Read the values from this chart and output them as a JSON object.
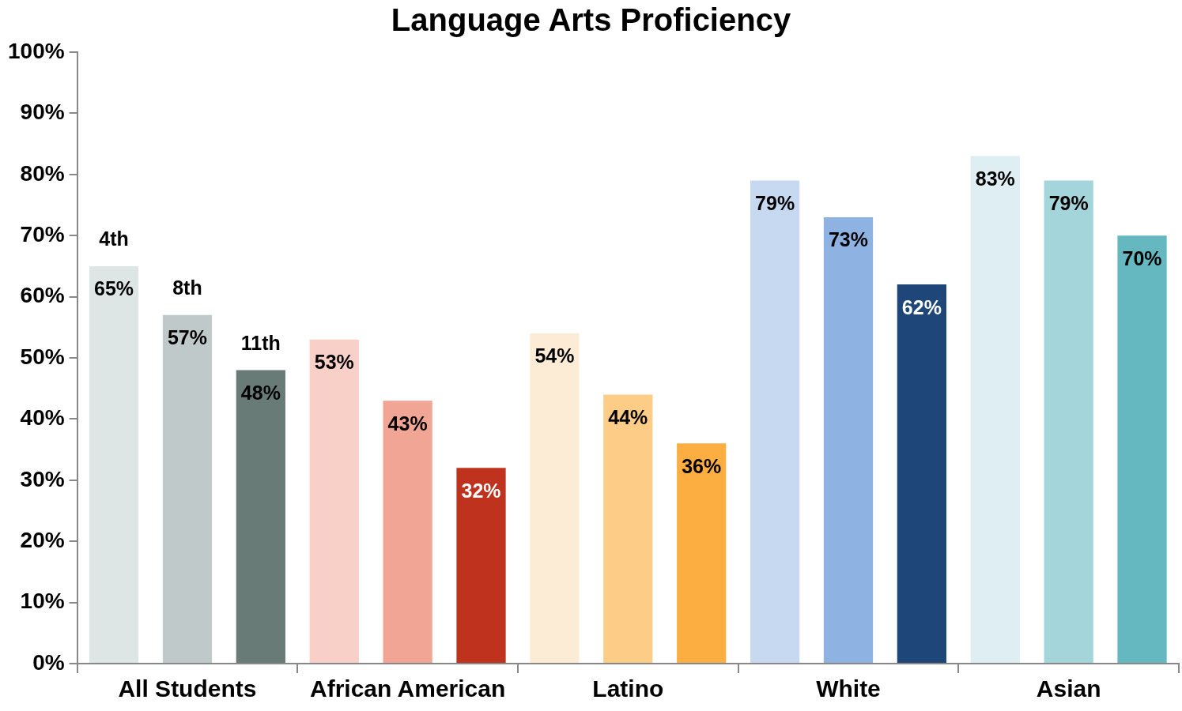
{
  "chart_data": {
    "type": "bar",
    "title": "Language Arts Proficiency",
    "categories": [
      "All Students",
      "African American",
      "Latino",
      "White",
      "Asian"
    ],
    "series": [
      {
        "name": "4th",
        "colors": [
          "#dde5e5",
          "#f8d0c8",
          "#fdecd5",
          "#c6d9f0",
          "#deeef3"
        ],
        "values": [
          65,
          53,
          54,
          79,
          83
        ],
        "value_labels": [
          "65%",
          "53%",
          "54%",
          "79%",
          "83%"
        ]
      },
      {
        "name": "8th",
        "colors": [
          "#c0c9c9",
          "#f0a595",
          "#fdcd88",
          "#8eb3e3",
          "#a4d5da"
        ],
        "values": [
          57,
          43,
          44,
          73,
          79
        ],
        "value_labels": [
          "57%",
          "43%",
          "44%",
          "73%",
          "79%"
        ]
      },
      {
        "name": "11th",
        "colors": [
          "#687b77",
          "#be321e",
          "#fcae40",
          "#1f4679",
          "#65b8c0"
        ],
        "values": [
          48,
          32,
          36,
          62,
          70
        ],
        "value_labels": [
          "48%",
          "32%",
          "36%",
          "62%",
          "70%"
        ]
      }
    ],
    "ylim": [
      0,
      100
    ],
    "yticks": [
      {
        "value": 0,
        "label": "0%"
      },
      {
        "value": 10,
        "label": "10%"
      },
      {
        "value": 20,
        "label": "20%"
      },
      {
        "value": 30,
        "label": "30%"
      },
      {
        "value": 40,
        "label": "40%"
      },
      {
        "value": 50,
        "label": "50%"
      },
      {
        "value": 60,
        "label": "60%"
      },
      {
        "value": 70,
        "label": "70%"
      },
      {
        "value": 80,
        "label": "80%"
      },
      {
        "value": 90,
        "label": "90%"
      },
      {
        "value": 100,
        "label": "100%"
      }
    ],
    "legend": false,
    "grid": false
  }
}
